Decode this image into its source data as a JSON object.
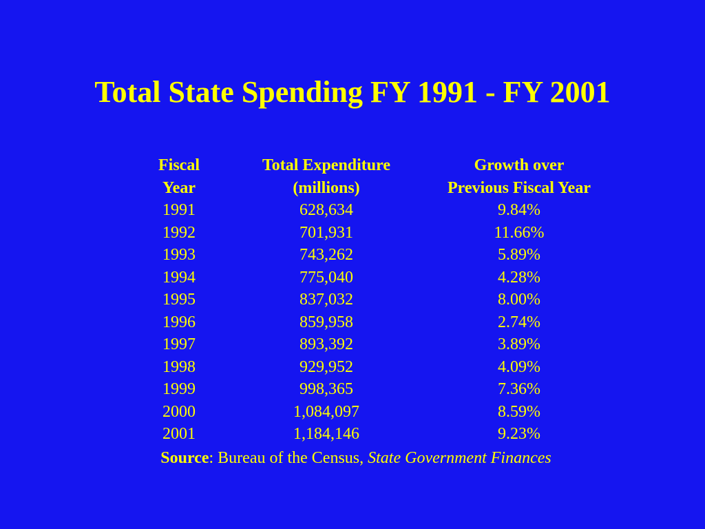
{
  "title": "Total State Spending FY 1991 - FY 2001",
  "table": {
    "headers": [
      {
        "line1": "Fiscal",
        "line2": "Year"
      },
      {
        "line1": "Total Expenditure",
        "line2": "(millions)"
      },
      {
        "line1": "Growth over",
        "line2": "Previous Fiscal Year"
      }
    ],
    "rows": [
      [
        "1991",
        "628,634",
        "9.84%"
      ],
      [
        "1992",
        "701,931",
        "11.66%"
      ],
      [
        "1993",
        "743,262",
        "5.89%"
      ],
      [
        "1994",
        "775,040",
        "4.28%"
      ],
      [
        "1995",
        "837,032",
        "8.00%"
      ],
      [
        "1996",
        "859,958",
        "2.74%"
      ],
      [
        "1997",
        "893,392",
        "3.89%"
      ],
      [
        "1998",
        "929,952",
        "4.09%"
      ],
      [
        "1999",
        "998,365",
        "7.36%"
      ],
      [
        "2000",
        "1,084,097",
        "8.59%"
      ],
      [
        "2001",
        "1,184,146",
        "9.23%"
      ]
    ]
  },
  "source": {
    "label": "Source",
    "separator": ": Bureau of the Census, ",
    "publication": "State Government Finances"
  },
  "colors": {
    "background": "#1515f0",
    "text": "#ffff00"
  }
}
